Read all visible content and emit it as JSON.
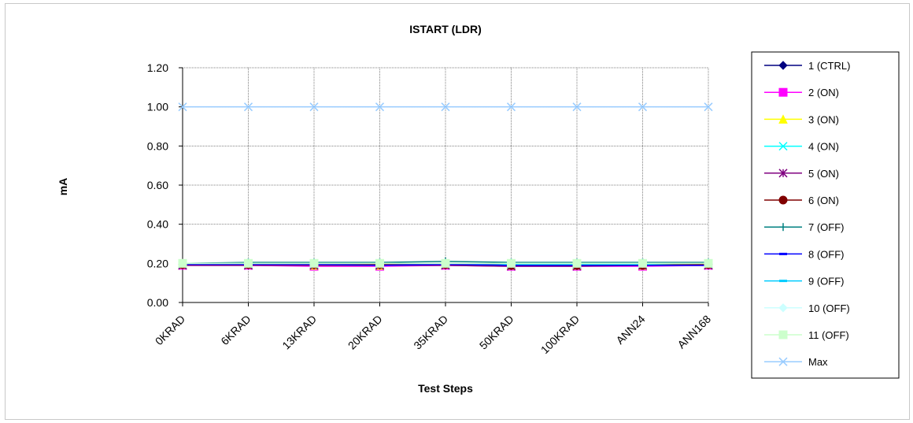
{
  "chart_data": {
    "type": "line",
    "title": "ISTART (LDR)",
    "xlabel": "Test Steps",
    "ylabel": "mA",
    "categories": [
      "0KRAD",
      "6KRAD",
      "13KRAD",
      "20KRAD",
      "35KRAD",
      "50KRAD",
      "100KRAD",
      "ANN24",
      "ANN168"
    ],
    "ylim": [
      0,
      1.2
    ],
    "yticks": [
      "0.00",
      "0.20",
      "0.40",
      "0.60",
      "0.80",
      "1.00",
      "1.20"
    ],
    "grid": true,
    "legend_position": "right",
    "series": [
      {
        "name": "1 (CTRL)",
        "color": "#000080",
        "marker": "diamond",
        "values": [
          0.195,
          0.195,
          0.195,
          0.195,
          0.195,
          0.195,
          0.195,
          0.195,
          0.195
        ]
      },
      {
        "name": "2 (ON)",
        "color": "#ff00ff",
        "marker": "square",
        "values": [
          0.19,
          0.19,
          0.185,
          0.185,
          0.19,
          0.185,
          0.185,
          0.185,
          0.19
        ]
      },
      {
        "name": "3 (ON)",
        "color": "#ffff00",
        "marker": "triangle",
        "values": [
          0.195,
          0.195,
          0.19,
          0.19,
          0.195,
          0.19,
          0.19,
          0.19,
          0.195
        ]
      },
      {
        "name": "4 (ON)",
        "color": "#00ffff",
        "marker": "x",
        "values": [
          0.195,
          0.195,
          0.195,
          0.195,
          0.195,
          0.195,
          0.195,
          0.195,
          0.195
        ]
      },
      {
        "name": "5 (ON)",
        "color": "#800080",
        "marker": "star",
        "values": [
          0.19,
          0.19,
          0.19,
          0.19,
          0.19,
          0.185,
          0.185,
          0.19,
          0.19
        ]
      },
      {
        "name": "6 (ON)",
        "color": "#800000",
        "marker": "circle",
        "values": [
          0.195,
          0.195,
          0.195,
          0.195,
          0.195,
          0.19,
          0.19,
          0.19,
          0.195
        ]
      },
      {
        "name": "7 (OFF)",
        "color": "#008080",
        "marker": "plus",
        "values": [
          0.2,
          0.205,
          0.205,
          0.205,
          0.21,
          0.205,
          0.205,
          0.205,
          0.205
        ]
      },
      {
        "name": "8 (OFF)",
        "color": "#0000ff",
        "marker": "dash",
        "values": [
          0.195,
          0.195,
          0.195,
          0.19,
          0.195,
          0.19,
          0.19,
          0.19,
          0.19
        ]
      },
      {
        "name": "9 (OFF)",
        "color": "#00ccff",
        "marker": "dash",
        "values": [
          0.2,
          0.2,
          0.2,
          0.2,
          0.2,
          0.2,
          0.2,
          0.2,
          0.2
        ]
      },
      {
        "name": "10 (OFF)",
        "color": "#ccffff",
        "marker": "diamond",
        "values": [
          0.2,
          0.2,
          0.2,
          0.2,
          0.2,
          0.2,
          0.2,
          0.2,
          0.2
        ]
      },
      {
        "name": "11 (OFF)",
        "color": "#ccffcc",
        "marker": "square",
        "values": [
          0.2,
          0.2,
          0.2,
          0.2,
          0.2,
          0.2,
          0.2,
          0.2,
          0.2
        ]
      },
      {
        "name": "Max",
        "color": "#99ccff",
        "marker": "x",
        "values": [
          1.0,
          1.0,
          1.0,
          1.0,
          1.0,
          1.0,
          1.0,
          1.0,
          1.0
        ]
      }
    ]
  }
}
